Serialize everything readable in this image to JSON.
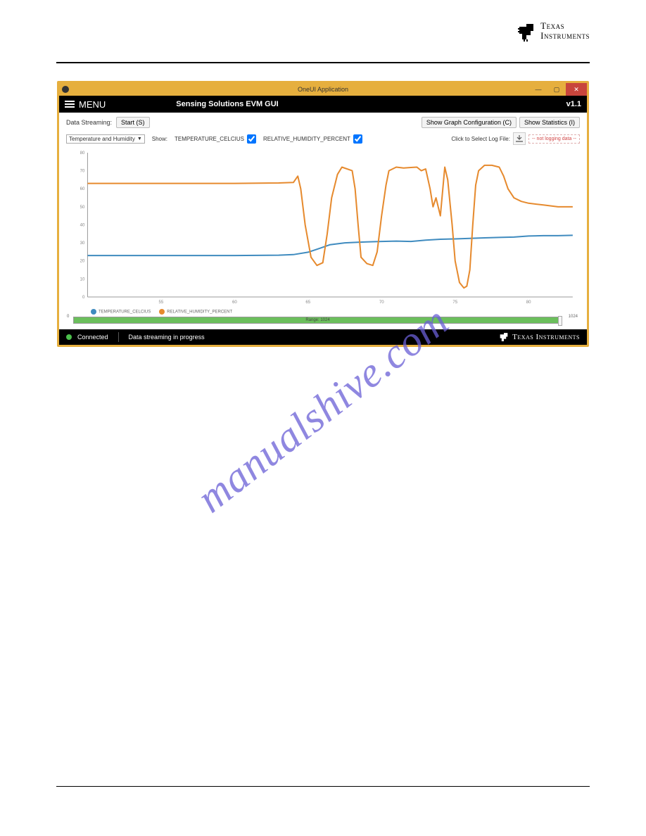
{
  "brand": {
    "name_line1": "Texas",
    "name_line2": "Instruments",
    "footer_name": "Texas Instruments"
  },
  "window": {
    "title": "OneUI Application"
  },
  "menubar": {
    "menu": "MENU",
    "subtitle": "Sensing Solutions EVM GUI",
    "version": "v1.1"
  },
  "toolbar": {
    "data_streaming_label": "Data Streaming:",
    "start_btn": "Start (S)",
    "show_graph_btn": "Show Graph Configuration (C)",
    "show_stats_btn": "Show Statistics (I)",
    "dropdown": "Temperature and Humidity",
    "show_label": "Show:",
    "series1_name": "TEMPERATURE_CELCIUS",
    "series2_name": "RELATIVE_HUMIDITY_PERCENT",
    "log_label": "Click to Select Log File:",
    "not_logging": "-- not logging data --"
  },
  "chart": {
    "type": "line",
    "ylim": [
      0,
      80
    ],
    "y_ticks": [
      0,
      10,
      20,
      30,
      40,
      50,
      60,
      70,
      80
    ],
    "x_ticks": [
      55,
      60,
      65,
      70,
      75,
      80
    ],
    "xlim": [
      50,
      83
    ],
    "background_color": "#ffffff",
    "grid_color": "#cccccc",
    "axis_color": "#999999",
    "tick_fontsize": 6,
    "series": [
      {
        "name": "TEMPERATURE_CELCIUS",
        "color": "#3f8bbf",
        "line_width": 2,
        "points": [
          [
            50,
            23
          ],
          [
            55,
            23
          ],
          [
            60,
            23
          ],
          [
            63,
            23.2
          ],
          [
            64,
            23.5
          ],
          [
            65,
            24.8
          ],
          [
            65.8,
            27
          ],
          [
            66.5,
            29
          ],
          [
            67.5,
            30
          ],
          [
            68,
            30.2
          ],
          [
            69,
            30.5
          ],
          [
            70,
            30.8
          ],
          [
            71,
            31
          ],
          [
            72,
            30.8
          ],
          [
            73,
            31.5
          ],
          [
            74,
            32
          ],
          [
            75,
            32.2
          ],
          [
            76,
            32.5
          ],
          [
            77,
            32.8
          ],
          [
            78,
            33
          ],
          [
            79,
            33.2
          ],
          [
            80,
            33.8
          ],
          [
            81,
            34
          ],
          [
            82,
            34
          ],
          [
            83,
            34.2
          ]
        ]
      },
      {
        "name": "RELATIVE_HUMIDITY_PERCENT",
        "color": "#e68a2e",
        "line_width": 2,
        "points": [
          [
            50,
            63
          ],
          [
            55,
            63
          ],
          [
            60,
            63
          ],
          [
            63,
            63.2
          ],
          [
            64,
            63.5
          ],
          [
            64.3,
            67
          ],
          [
            64.5,
            60
          ],
          [
            64.8,
            40
          ],
          [
            65.2,
            22
          ],
          [
            65.6,
            17.5
          ],
          [
            66,
            19
          ],
          [
            66.3,
            35
          ],
          [
            66.6,
            55
          ],
          [
            67,
            68
          ],
          [
            67.3,
            72
          ],
          [
            68,
            70
          ],
          [
            68.2,
            60
          ],
          [
            68.4,
            40
          ],
          [
            68.6,
            22
          ],
          [
            69,
            18.5
          ],
          [
            69.4,
            17.5
          ],
          [
            69.7,
            25
          ],
          [
            70,
            45
          ],
          [
            70.3,
            62
          ],
          [
            70.5,
            70
          ],
          [
            71,
            72
          ],
          [
            71.5,
            71.5
          ],
          [
            72,
            71.8
          ],
          [
            72.4,
            72
          ],
          [
            72.7,
            70
          ],
          [
            73,
            71
          ],
          [
            73.3,
            60
          ],
          [
            73.5,
            50
          ],
          [
            73.7,
            55
          ],
          [
            74,
            45
          ],
          [
            74.3,
            72
          ],
          [
            74.5,
            65
          ],
          [
            74.8,
            40
          ],
          [
            75,
            20
          ],
          [
            75.3,
            8
          ],
          [
            75.6,
            5
          ],
          [
            75.8,
            6
          ],
          [
            76,
            15
          ],
          [
            76.2,
            40
          ],
          [
            76.4,
            62
          ],
          [
            76.6,
            70
          ],
          [
            77,
            73
          ],
          [
            77.5,
            73
          ],
          [
            78,
            72
          ],
          [
            78.3,
            67
          ],
          [
            78.6,
            60
          ],
          [
            79,
            55
          ],
          [
            79.5,
            53
          ],
          [
            80,
            52
          ],
          [
            81,
            51
          ],
          [
            82,
            50
          ],
          [
            83,
            50
          ]
        ]
      }
    ],
    "legend_items": [
      {
        "label": "TEMPERATURE_CELCIUS",
        "color": "#3f8bbf"
      },
      {
        "label": "RELATIVE_HUMIDITY_PERCENT",
        "color": "#e68a2e"
      }
    ]
  },
  "range_bar": {
    "start": "0",
    "end": "1024",
    "label": "Range: 1024",
    "fill_color": "#6bbf5c"
  },
  "statusbar": {
    "connected": "Connected",
    "streaming": "Data streaming in progress"
  },
  "watermark": "manualshive.com"
}
